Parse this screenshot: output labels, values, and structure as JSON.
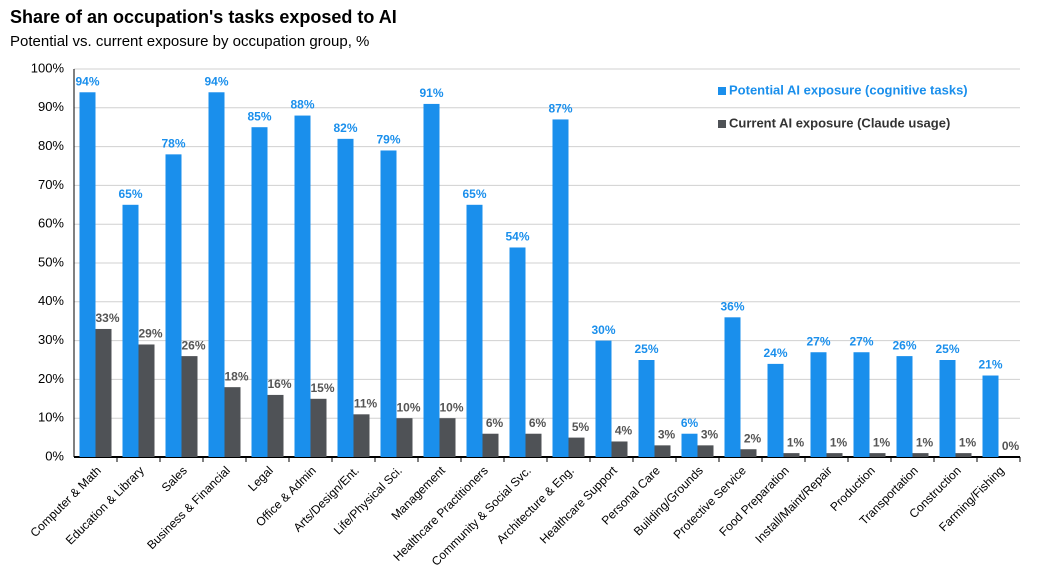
{
  "chart_data": {
    "type": "bar",
    "title": "Share of an occupation's tasks exposed to AI",
    "subtitle": "Potential vs. current exposure by occupation group, %",
    "categories": [
      "Computer & Math",
      "Education & Library",
      "Sales",
      "Business & Financial",
      "Legal",
      "Office & Admin",
      "Arts/Design/Ent.",
      "Life/Physical Sci.",
      "Management",
      "Healthcare Practitioners",
      "Community & Social Svc.",
      "Architecture & Eng.",
      "Healthcare Support",
      "Personal Care",
      "Building/Grounds",
      "Protective Service",
      "Food Preparation",
      "Install/Maint/Repair",
      "Production",
      "Transportation",
      "Construction",
      "Farming/Fishing"
    ],
    "series": [
      {
        "name": "Potential AI exposure (cognitive tasks)",
        "color": "#1a8fec",
        "values": [
          94,
          65,
          78,
          94,
          85,
          88,
          82,
          79,
          91,
          65,
          54,
          87,
          30,
          25,
          6,
          36,
          24,
          27,
          27,
          26,
          25,
          21
        ],
        "value_labels": [
          "94%",
          "65%",
          "78%",
          "94%",
          "85%",
          "88%",
          "82%",
          "79%",
          "91%",
          "65%",
          "54%",
          "87%",
          "30%",
          "25%",
          "6%",
          "36%",
          "24%",
          "27%",
          "27%",
          "26%",
          "25%",
          "21%"
        ]
      },
      {
        "name": "Current AI exposure (Claude usage)",
        "color": "#4f5256",
        "values": [
          33,
          29,
          26,
          18,
          16,
          15,
          11,
          10,
          10,
          6,
          6,
          5,
          4,
          3,
          3,
          2,
          1,
          1,
          1,
          1,
          1,
          0
        ],
        "value_labels": [
          "33%",
          "29%",
          "26%",
          "18%",
          "16%",
          "15%",
          "11%",
          "10%",
          "10%",
          "6%",
          "6%",
          "5%",
          "4%",
          "3%",
          "3%",
          "2%",
          "1%",
          "1%",
          "1%",
          "1%",
          "1%",
          "0%"
        ]
      }
    ],
    "ylim": [
      0,
      100
    ],
    "yticks": [
      {
        "value": 0,
        "label": "0%"
      },
      {
        "value": 10,
        "label": "10%"
      },
      {
        "value": 20,
        "label": "20%"
      },
      {
        "value": 30,
        "label": "30%"
      },
      {
        "value": 40,
        "label": "40%"
      },
      {
        "value": 50,
        "label": "50%"
      },
      {
        "value": 60,
        "label": "60%"
      },
      {
        "value": 70,
        "label": "70%"
      },
      {
        "value": 80,
        "label": "80%"
      },
      {
        "value": 90,
        "label": "90%"
      },
      {
        "value": 100,
        "label": "100%"
      }
    ],
    "grid": true,
    "legend": "top-right"
  }
}
